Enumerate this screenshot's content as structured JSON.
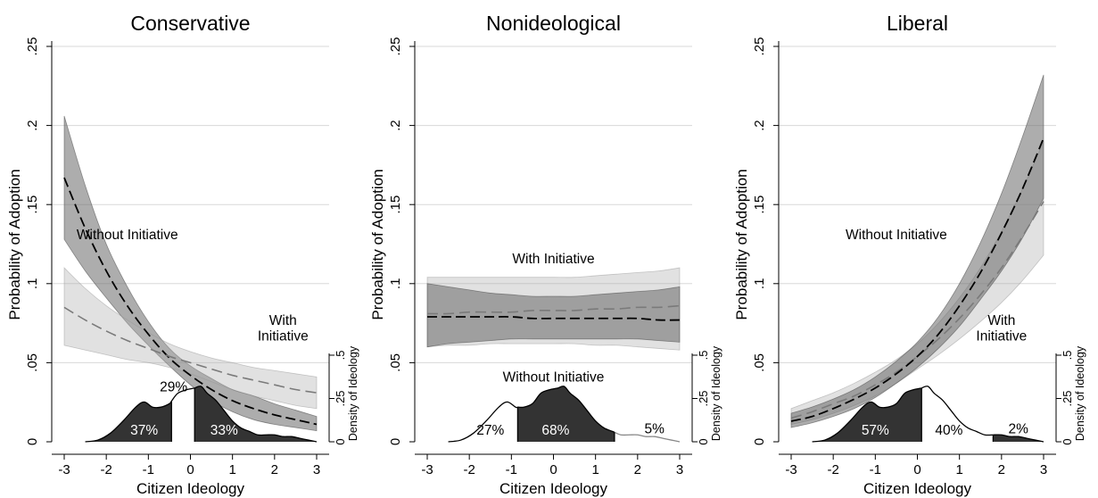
{
  "chart_data": [
    {
      "type": "line",
      "title": "Conservative",
      "xlabel": "Citizen Ideology",
      "ylabel": "Probability of Adoption",
      "y2label": "Density of Ideology",
      "xlim": [
        -3,
        3
      ],
      "ylim": [
        0,
        0.25
      ],
      "x_ticks": [
        -3,
        -2,
        -1,
        0,
        1,
        2,
        3
      ],
      "x_tick_labels": [
        "-3",
        "-2",
        "-1",
        "0",
        "1",
        "2",
        "3"
      ],
      "y_ticks": [
        0,
        0.05,
        0.1,
        0.15,
        0.2,
        0.25
      ],
      "y_tick_labels": [
        "0",
        ".05",
        ".1",
        ".15",
        ".2",
        ".25"
      ],
      "y2_ticks": [
        0,
        0.25,
        0.5
      ],
      "y2_tick_labels": [
        "0",
        ".25",
        ".5"
      ],
      "grid": true,
      "x": [
        -3,
        -2.5,
        -2,
        -1.5,
        -1,
        -0.5,
        0,
        0.5,
        1,
        1.5,
        2,
        2.5,
        3
      ],
      "series": [
        {
          "key": "without",
          "style": "black-dash",
          "band": "darkgray",
          "values": [
            0.167,
            0.135,
            0.108,
            0.086,
            0.068,
            0.053,
            0.042,
            0.033,
            0.026,
            0.021,
            0.017,
            0.014,
            0.011
          ],
          "lower": [
            0.128,
            0.108,
            0.091,
            0.075,
            0.061,
            0.048,
            0.036,
            0.026,
            0.019,
            0.014,
            0.011,
            0.009,
            0.007
          ],
          "upper": [
            0.206,
            0.162,
            0.125,
            0.098,
            0.076,
            0.059,
            0.048,
            0.04,
            0.033,
            0.029,
            0.024,
            0.02,
            0.016
          ]
        },
        {
          "key": "with",
          "style": "gray-dash",
          "band": "lightgray",
          "values": [
            0.085,
            0.077,
            0.07,
            0.064,
            0.059,
            0.054,
            0.05,
            0.046,
            0.042,
            0.039,
            0.036,
            0.033,
            0.031
          ],
          "lower": [
            0.061,
            0.058,
            0.055,
            0.052,
            0.05,
            0.047,
            0.043,
            0.038,
            0.033,
            0.029,
            0.026,
            0.023,
            0.021
          ],
          "upper": [
            0.11,
            0.097,
            0.086,
            0.077,
            0.069,
            0.062,
            0.057,
            0.053,
            0.05,
            0.047,
            0.045,
            0.043,
            0.041
          ]
        }
      ],
      "density": {
        "x": [
          -2.5,
          -2.2,
          -1.9,
          -1.6,
          -1.3,
          -1.1,
          -0.9,
          -0.7,
          -0.5,
          -0.3,
          -0.1,
          0.1,
          0.25,
          0.4,
          0.6,
          0.8,
          1.0,
          1.2,
          1.4,
          1.6,
          1.8,
          2.0,
          2.2,
          2.4,
          2.6,
          2.8,
          3.0
        ],
        "y": [
          0.0,
          0.01,
          0.05,
          0.12,
          0.2,
          0.23,
          0.2,
          0.2,
          0.22,
          0.28,
          0.3,
          0.31,
          0.32,
          0.28,
          0.24,
          0.18,
          0.12,
          0.08,
          0.06,
          0.04,
          0.04,
          0.04,
          0.03,
          0.03,
          0.02,
          0.01,
          0.0
        ],
        "cuts": [
          -0.45,
          0.1
        ],
        "segments": [
          "dark",
          "white",
          "dark"
        ]
      },
      "annotations": [
        {
          "key": "without-label",
          "text": "Without Initiative",
          "x": -1.5,
          "y": 0.128
        },
        {
          "key": "with-label-1",
          "text": "With",
          "x": 2.2,
          "y": 0.074
        },
        {
          "key": "with-label-2",
          "text": "Initiative",
          "x": 2.2,
          "y": 0.064
        },
        {
          "key": "pct-left",
          "text": "37%",
          "x": -1.1,
          "y": 0.0045
        },
        {
          "key": "pct-mid",
          "text": "29%",
          "x": -0.4,
          "y": 0.032
        },
        {
          "key": "pct-right",
          "text": "33%",
          "x": 0.8,
          "y": 0.0045
        }
      ]
    },
    {
      "type": "line",
      "title": "Nonideological",
      "xlabel": "Citizen Ideology",
      "ylabel": "Probability of Adoption",
      "y2label": "Density of Ideology",
      "xlim": [
        -3,
        3
      ],
      "ylim": [
        0,
        0.25
      ],
      "x_ticks": [
        -3,
        -2,
        -1,
        0,
        1,
        2,
        3
      ],
      "x_tick_labels": [
        "-3",
        "-2",
        "-1",
        "0",
        "1",
        "2",
        "3"
      ],
      "y_ticks": [
        0,
        0.05,
        0.1,
        0.15,
        0.2,
        0.25
      ],
      "y_tick_labels": [
        "0",
        ".05",
        ".1",
        ".15",
        ".2",
        ".25"
      ],
      "y2_ticks": [
        0,
        0.25,
        0.5
      ],
      "y2_tick_labels": [
        "0",
        ".25",
        ".5"
      ],
      "grid": true,
      "x": [
        -3,
        -2.5,
        -2,
        -1.5,
        -1,
        -0.5,
        0,
        0.5,
        1,
        1.5,
        2,
        2.5,
        3
      ],
      "series": [
        {
          "key": "with",
          "style": "gray-dash",
          "band": "lightgray",
          "values": [
            0.081,
            0.081,
            0.082,
            0.082,
            0.082,
            0.083,
            0.083,
            0.083,
            0.084,
            0.084,
            0.085,
            0.085,
            0.086
          ],
          "lower": [
            0.06,
            0.061,
            0.061,
            0.062,
            0.062,
            0.062,
            0.062,
            0.062,
            0.061,
            0.061,
            0.06,
            0.059,
            0.058
          ],
          "upper": [
            0.104,
            0.104,
            0.104,
            0.104,
            0.104,
            0.104,
            0.104,
            0.104,
            0.105,
            0.106,
            0.107,
            0.108,
            0.11
          ]
        },
        {
          "key": "without",
          "style": "black-dash",
          "band": "darkgray",
          "values": [
            0.079,
            0.079,
            0.079,
            0.079,
            0.079,
            0.078,
            0.078,
            0.078,
            0.078,
            0.078,
            0.078,
            0.077,
            0.077
          ],
          "lower": [
            0.06,
            0.062,
            0.063,
            0.064,
            0.065,
            0.065,
            0.065,
            0.065,
            0.065,
            0.065,
            0.065,
            0.064,
            0.063
          ],
          "upper": [
            0.1,
            0.098,
            0.096,
            0.094,
            0.093,
            0.092,
            0.092,
            0.092,
            0.093,
            0.094,
            0.095,
            0.096,
            0.098
          ]
        }
      ],
      "density": {
        "x": [
          -2.5,
          -2.2,
          -1.9,
          -1.6,
          -1.3,
          -1.1,
          -0.9,
          -0.7,
          -0.5,
          -0.3,
          -0.1,
          0.1,
          0.25,
          0.4,
          0.6,
          0.8,
          1.0,
          1.2,
          1.4,
          1.6,
          1.8,
          2.0,
          2.2,
          2.4,
          2.6,
          2.8,
          3.0
        ],
        "y": [
          0.0,
          0.01,
          0.05,
          0.12,
          0.2,
          0.23,
          0.2,
          0.2,
          0.22,
          0.28,
          0.3,
          0.31,
          0.32,
          0.28,
          0.24,
          0.18,
          0.12,
          0.08,
          0.06,
          0.04,
          0.04,
          0.04,
          0.03,
          0.03,
          0.02,
          0.01,
          0.0
        ],
        "cuts": [
          -0.85,
          1.45
        ],
        "segments": [
          "white",
          "dark",
          "light"
        ]
      },
      "annotations": [
        {
          "key": "with-label",
          "text": "With Initiative",
          "x": 0,
          "y": 0.113
        },
        {
          "key": "without-label",
          "text": "Without Initiative",
          "x": 0,
          "y": 0.038
        },
        {
          "key": "pct-left",
          "text": "27%",
          "x": -1.5,
          "y": 0.0045
        },
        {
          "key": "pct-mid",
          "text": "68%",
          "x": 0.05,
          "y": 0.0045
        },
        {
          "key": "pct-right",
          "text": "5%",
          "x": 2.4,
          "y": 0.0055
        }
      ]
    },
    {
      "type": "line",
      "title": "Liberal",
      "xlabel": "Citizen Ideology",
      "ylabel": "Probability of Adoption",
      "y2label": "Density of Ideology",
      "xlim": [
        -3,
        3
      ],
      "ylim": [
        0,
        0.25
      ],
      "x_ticks": [
        -3,
        -2,
        -1,
        0,
        1,
        2,
        3
      ],
      "x_tick_labels": [
        "-3",
        "-2",
        "-1",
        "0",
        "1",
        "2",
        "3"
      ],
      "y_ticks": [
        0,
        0.05,
        0.1,
        0.15,
        0.2,
        0.25
      ],
      "y_tick_labels": [
        "0",
        ".05",
        ".1",
        ".15",
        ".2",
        ".25"
      ],
      "y2_ticks": [
        0,
        0.25,
        0.5
      ],
      "y2_tick_labels": [
        "0",
        ".25",
        ".5"
      ],
      "grid": true,
      "x": [
        -3,
        -2.5,
        -2,
        -1.5,
        -1,
        -0.5,
        0,
        0.5,
        1,
        1.5,
        2,
        2.5,
        3
      ],
      "series": [
        {
          "key": "with",
          "style": "gray-dash",
          "band": "lightgray",
          "values": [
            0.015,
            0.019,
            0.024,
            0.029,
            0.036,
            0.044,
            0.054,
            0.065,
            0.078,
            0.093,
            0.11,
            0.13,
            0.152
          ],
          "lower": [
            0.011,
            0.014,
            0.018,
            0.023,
            0.029,
            0.037,
            0.046,
            0.055,
            0.065,
            0.076,
            0.088,
            0.102,
            0.118
          ],
          "upper": [
            0.021,
            0.026,
            0.031,
            0.037,
            0.044,
            0.052,
            0.062,
            0.075,
            0.091,
            0.11,
            0.133,
            0.16,
            0.19
          ]
        },
        {
          "key": "without",
          "style": "black-dash",
          "band": "darkgray",
          "values": [
            0.013,
            0.016,
            0.021,
            0.027,
            0.034,
            0.043,
            0.054,
            0.068,
            0.086,
            0.107,
            0.132,
            0.16,
            0.192
          ],
          "lower": [
            0.009,
            0.012,
            0.016,
            0.021,
            0.028,
            0.037,
            0.047,
            0.059,
            0.073,
            0.09,
            0.108,
            0.129,
            0.154
          ],
          "upper": [
            0.018,
            0.022,
            0.027,
            0.033,
            0.041,
            0.051,
            0.063,
            0.079,
            0.1,
            0.126,
            0.157,
            0.193,
            0.232
          ]
        }
      ],
      "density": {
        "x": [
          -2.5,
          -2.2,
          -1.9,
          -1.6,
          -1.3,
          -1.1,
          -0.9,
          -0.7,
          -0.5,
          -0.3,
          -0.1,
          0.1,
          0.25,
          0.4,
          0.6,
          0.8,
          1.0,
          1.2,
          1.4,
          1.6,
          1.8,
          2.0,
          2.2,
          2.4,
          2.6,
          2.8,
          3.0
        ],
        "y": [
          0.0,
          0.01,
          0.05,
          0.12,
          0.2,
          0.23,
          0.2,
          0.2,
          0.22,
          0.28,
          0.3,
          0.31,
          0.32,
          0.28,
          0.24,
          0.18,
          0.12,
          0.08,
          0.06,
          0.04,
          0.04,
          0.04,
          0.03,
          0.03,
          0.02,
          0.01,
          0.0
        ],
        "cuts": [
          0.1,
          1.8
        ],
        "segments": [
          "dark",
          "white",
          "dark"
        ]
      },
      "annotations": [
        {
          "key": "without-label",
          "text": "Without Initiative",
          "x": -0.5,
          "y": 0.128
        },
        {
          "key": "with-label-1",
          "text": "With",
          "x": 2.0,
          "y": 0.074
        },
        {
          "key": "with-label-2",
          "text": "Initiative",
          "x": 2.0,
          "y": 0.064
        },
        {
          "key": "pct-left",
          "text": "57%",
          "x": -1.0,
          "y": 0.0045
        },
        {
          "key": "pct-mid",
          "text": "40%",
          "x": 0.75,
          "y": 0.0045
        },
        {
          "key": "pct-right",
          "text": "2%",
          "x": 2.4,
          "y": 0.0055
        }
      ]
    }
  ]
}
